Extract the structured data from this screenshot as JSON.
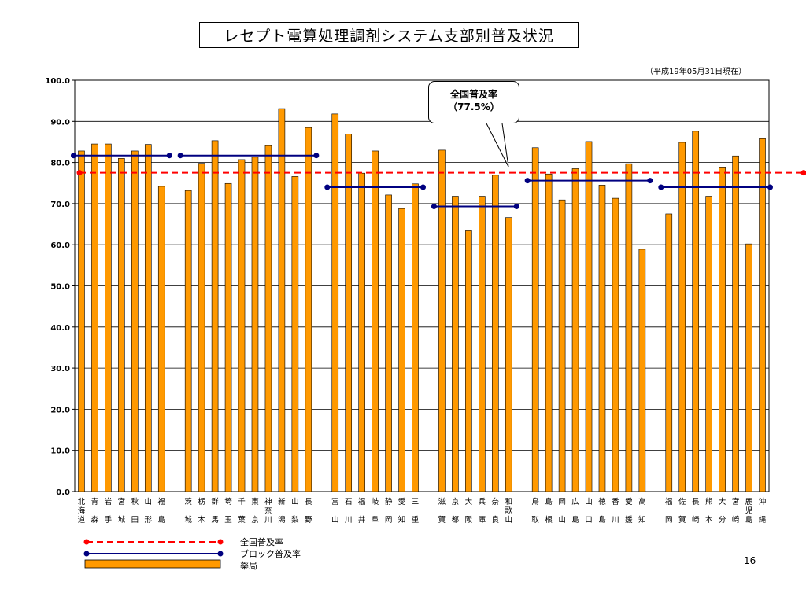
{
  "title": "レセプト電算処理調剤システム支部別普及状況",
  "date_note": "（平成19年05月31日現在）",
  "page_number": "16",
  "callout": {
    "line1": "全国普及率",
    "line2": "（77.5%）"
  },
  "legend": {
    "national": "全国普及率",
    "block": "ブロック普及率",
    "pharmacy": "薬局"
  },
  "colors": {
    "bar": "#FF9900",
    "bar_border": "#000000",
    "national_line": "#FF0000",
    "block_line": "#000080"
  },
  "chart_data": {
    "type": "bar",
    "ylim": [
      0,
      100
    ],
    "yticks": [
      "0.0",
      "10.0",
      "20.0",
      "30.0",
      "40.0",
      "50.0",
      "60.0",
      "70.0",
      "80.0",
      "90.0",
      "100.0"
    ],
    "grid": true,
    "national_rate": 77.5,
    "series": [
      {
        "name": "薬局",
        "values": [
          82.8,
          84.5,
          84.5,
          81.0,
          82.8,
          84.4,
          74.2,
          73.2,
          79.8,
          85.3,
          74.9,
          80.7,
          81.3,
          84.1,
          93.1,
          76.6,
          88.5,
          91.8,
          86.9,
          77.4,
          82.8,
          72.1,
          68.8,
          74.8,
          83.0,
          71.8,
          63.4,
          71.8,
          76.9,
          66.6,
          83.6,
          77.2,
          70.9,
          78.5,
          85.1,
          74.5,
          71.3,
          79.7,
          58.9,
          67.5,
          84.9,
          87.6,
          71.8,
          78.9,
          81.6,
          60.2,
          85.8
        ]
      }
    ],
    "groups": [
      {
        "categories": [
          "北海道",
          "青森",
          "岩手",
          "宮城",
          "秋田",
          "山形",
          "福島"
        ],
        "block_rate": 81.7
      },
      {
        "categories": [
          "茨城",
          "栃木",
          "群馬",
          "埼玉",
          "千葉",
          "東京",
          "神奈川",
          "新潟",
          "山梨",
          "長野"
        ],
        "block_rate": 81.7
      },
      {
        "categories": [
          "富山",
          "石川",
          "福井",
          "岐阜",
          "静岡",
          "愛知",
          "三重"
        ],
        "block_rate": 74.0
      },
      {
        "categories": [
          "滋賀",
          "京都",
          "大阪",
          "兵庫",
          "奈良",
          "和歌山"
        ],
        "block_rate": 69.3
      },
      {
        "categories": [
          "鳥取",
          "島根",
          "岡山",
          "広島",
          "山口",
          "徳島",
          "香川",
          "愛媛",
          "高知"
        ],
        "block_rate": 75.6
      },
      {
        "categories": [
          "福岡",
          "佐賀",
          "長崎",
          "熊本",
          "大分",
          "宮崎",
          "鹿児島",
          "沖縄"
        ],
        "block_rate": 74.0
      }
    ]
  }
}
